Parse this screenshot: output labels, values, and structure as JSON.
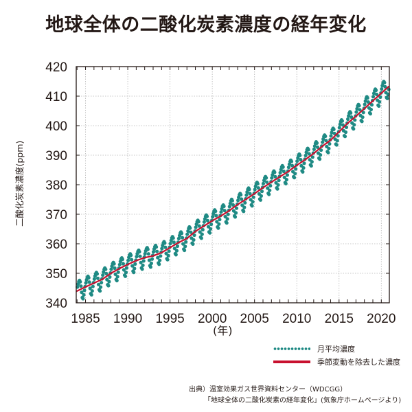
{
  "title": "地球全体の二酸化炭素濃度の経年変化",
  "colors": {
    "monthly": "#1f8a84",
    "trend": "#c8102e",
    "axis": "#231815",
    "grid": "#b5b5b5"
  },
  "legend": {
    "monthly_label": "月平均濃度",
    "trend_label": "季節変動を除去した濃度"
  },
  "source": {
    "line1": "出典）温室効果ガス世界資料センター（WDCGG）",
    "line2": "「地球全体の二酸化炭素の経年変化」(気象庁ホームページより)"
  },
  "chart_data": {
    "type": "line",
    "title": "地球全体の二酸化炭素濃度の経年変化",
    "xlabel": "(年)",
    "ylabel": "二酸化炭素濃度(ppm)",
    "xlim": [
      1983.9,
      2020.95
    ],
    "ylim": [
      340,
      420
    ],
    "xticks": [
      1985,
      1990,
      1995,
      2000,
      2005,
      2010,
      2015,
      2020
    ],
    "xtick_labels": [
      "1985",
      "1990",
      "1995",
      "2000",
      "2005",
      "2010",
      "2015",
      "2020"
    ],
    "yticks": [
      340,
      350,
      360,
      370,
      380,
      390,
      400,
      410,
      420
    ],
    "ytick_labels": [
      "340",
      "350",
      "360",
      "370",
      "380",
      "390",
      "400",
      "410",
      "420"
    ],
    "grid": true,
    "legend_position": "bottom-right",
    "trend_years": [
      1984,
      1985,
      1986,
      1987,
      1988,
      1989,
      1990,
      1991,
      1992,
      1993,
      1994,
      1995,
      1996,
      1997,
      1998,
      1999,
      2000,
      2001,
      2002,
      2003,
      2004,
      2005,
      2006,
      2007,
      2008,
      2009,
      2010,
      2011,
      2012,
      2013,
      2014,
      2015,
      2016,
      2017,
      2018,
      2019,
      2020,
      2021
    ],
    "trend_values": [
      344.0,
      345.4,
      346.7,
      348.0,
      350.0,
      351.6,
      353.0,
      354.3,
      355.3,
      355.9,
      357.0,
      358.7,
      360.4,
      361.8,
      364.2,
      366.0,
      367.8,
      369.4,
      371.2,
      373.3,
      375.1,
      377.0,
      379.0,
      380.9,
      382.7,
      384.5,
      386.6,
      388.5,
      390.6,
      393.0,
      395.1,
      397.9,
      400.8,
      403.2,
      405.8,
      408.4,
      411.0,
      413.6
    ],
    "series": [
      {
        "name": "月平均濃度",
        "kind": "monthly",
        "seasonal_offsets_by_month": [
          1.3,
          2.2,
          2.9,
          3.2,
          2.6,
          1.0,
          -1.2,
          -3.1,
          -3.6,
          -2.4,
          -1.0,
          0.2
        ]
      },
      {
        "name": "季節変動を除去した濃度",
        "kind": "trend"
      }
    ]
  }
}
